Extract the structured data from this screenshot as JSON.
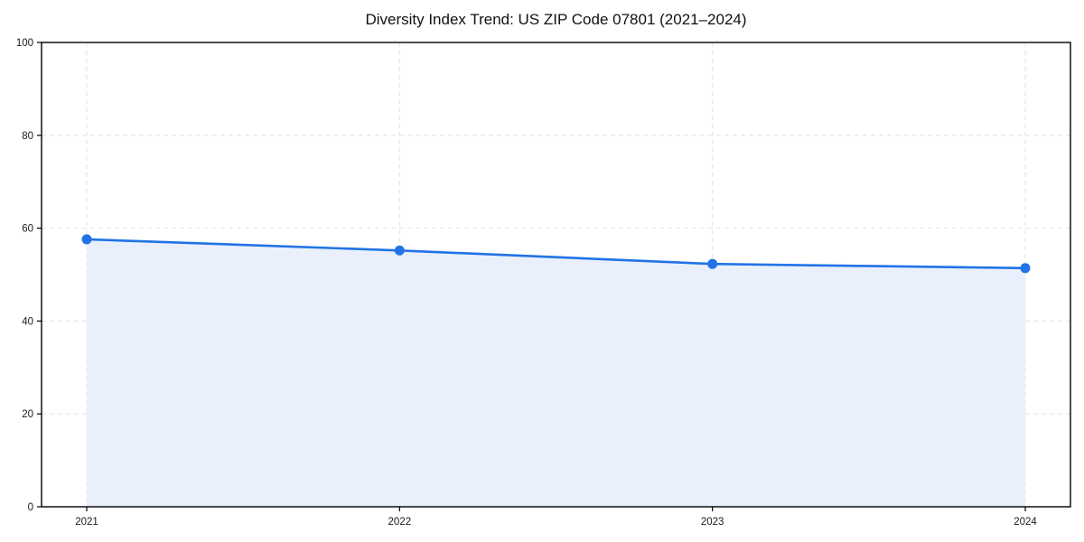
{
  "chart_data": {
    "type": "area",
    "title": "Diversity Index Trend: US ZIP Code 07801 (2021–2024)",
    "x": [
      "2021",
      "2022",
      "2023",
      "2024"
    ],
    "series": [
      {
        "name": "Diversity Index",
        "values": [
          57.6,
          55.2,
          52.3,
          51.4
        ]
      }
    ],
    "xlabel": "",
    "ylabel": "",
    "ylim": [
      0,
      100
    ],
    "yticks": [
      0,
      20,
      40,
      60,
      80,
      100
    ],
    "grid": "dashed, horizontal and vertical",
    "legend": "none",
    "colors": {
      "line": "#2273e6",
      "marker": "#2273e6",
      "area_fill": "#e9f0fc",
      "grid": "#e4e4e4",
      "axis": "#000000",
      "tick_text": "#1a1a1a",
      "background": "#ffffff"
    }
  }
}
